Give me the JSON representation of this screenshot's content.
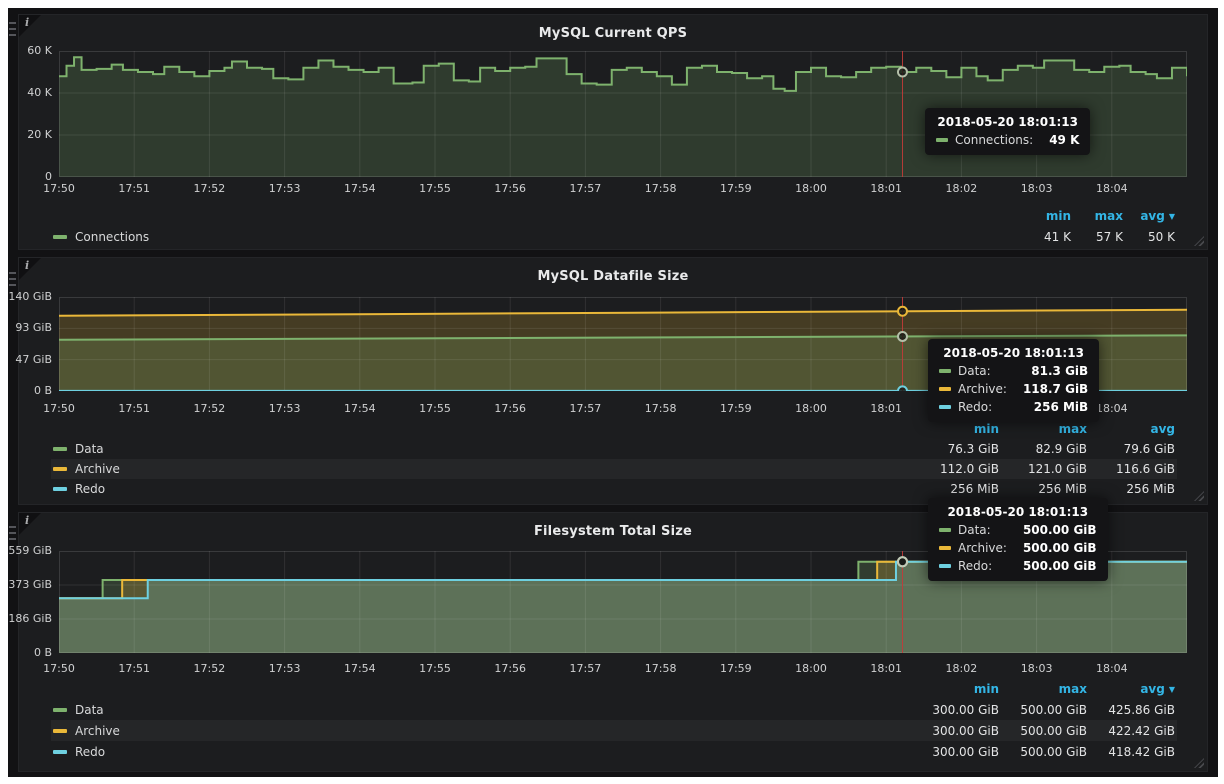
{
  "colors": {
    "green": "#7eb26d",
    "yellow": "#eab839",
    "cyan": "#6ed0e0",
    "legend_header_blue": "#33b5e5",
    "crosshair_red": "#c23b39"
  },
  "x_tick_labels": [
    "17:50",
    "17:51",
    "17:52",
    "17:53",
    "17:54",
    "17:55",
    "17:56",
    "17:57",
    "17:58",
    "17:59",
    "18:00",
    "18:01",
    "18:02",
    "18:03",
    "18:04"
  ],
  "panels": [
    {
      "title": "MySQL Current QPS",
      "y_tick_labels": [
        "60 K",
        "40 K",
        "20 K",
        "0"
      ],
      "tooltip": {
        "time": "2018-05-20 18:01:13",
        "rows": [
          {
            "label": "Connections:",
            "value": "49 K",
            "color": "#7eb26d"
          }
        ]
      },
      "legend": {
        "headers": [
          "min",
          "max",
          "avg"
        ],
        "sorted_by": "avg",
        "rows": [
          {
            "name": "Connections",
            "color": "#7eb26d",
            "stats": [
              "41 K",
              "57 K",
              "50 K"
            ]
          }
        ]
      }
    },
    {
      "title": "MySQL Datafile Size",
      "y_tick_labels": [
        "140 GiB",
        "93 GiB",
        "47 GiB",
        "0 B"
      ],
      "tooltip": {
        "time": "2018-05-20 18:01:13",
        "rows": [
          {
            "label": "Data:",
            "value": "81.3 GiB",
            "color": "#7eb26d"
          },
          {
            "label": "Archive:",
            "value": "118.7 GiB",
            "color": "#eab839"
          },
          {
            "label": "Redo:",
            "value": "256 MiB",
            "color": "#6ed0e0"
          }
        ]
      },
      "legend": {
        "headers": [
          "min",
          "max",
          "avg"
        ],
        "sorted_by": null,
        "rows": [
          {
            "name": "Data",
            "color": "#7eb26d",
            "stats": [
              "76.3 GiB",
              "82.9 GiB",
              "79.6 GiB"
            ]
          },
          {
            "name": "Archive",
            "color": "#eab839",
            "stats": [
              "112.0 GiB",
              "121.0 GiB",
              "116.6 GiB"
            ]
          },
          {
            "name": "Redo",
            "color": "#6ed0e0",
            "stats": [
              "256 MiB",
              "256 MiB",
              "256 MiB"
            ]
          }
        ]
      }
    },
    {
      "title": "Filesystem Total Size",
      "y_tick_labels": [
        "559 GiB",
        "373 GiB",
        "186 GiB",
        "0 B"
      ],
      "tooltip": {
        "time": "2018-05-20 18:01:13",
        "rows": [
          {
            "label": "Data:",
            "value": "500.00 GiB",
            "color": "#7eb26d"
          },
          {
            "label": "Archive:",
            "value": "500.00 GiB",
            "color": "#eab839"
          },
          {
            "label": "Redo:",
            "value": "500.00 GiB",
            "color": "#6ed0e0"
          }
        ]
      },
      "legend": {
        "headers": [
          "min",
          "max",
          "avg"
        ],
        "sorted_by": "avg",
        "rows": [
          {
            "name": "Data",
            "color": "#7eb26d",
            "stats": [
              "300.00 GiB",
              "500.00 GiB",
              "425.86 GiB"
            ]
          },
          {
            "name": "Archive",
            "color": "#eab839",
            "stats": [
              "300.00 GiB",
              "500.00 GiB",
              "422.42 GiB"
            ]
          },
          {
            "name": "Redo",
            "color": "#6ed0e0",
            "stats": [
              "300.00 GiB",
              "500.00 GiB",
              "418.42 GiB"
            ]
          }
        ]
      }
    }
  ],
  "chart_data": [
    {
      "type": "line",
      "title": "MySQL Current QPS",
      "x_start": "17:50",
      "x_end": "18:05",
      "x_minutes": 15,
      "ylim": [
        0,
        60
      ],
      "y_unit": "K queries/s",
      "grid": true,
      "crosshair_minute": 11.2167,
      "crosshair_time": "2018-05-20 18:01:13",
      "series": [
        {
          "name": "Connections",
          "color": "#7eb26d",
          "mode": "steps",
          "fill_opacity": 0.2,
          "ring": "#b4bfa9",
          "points": [
            [
              0,
              48
            ],
            [
              0.1,
              53
            ],
            [
              0.2,
              57
            ],
            [
              0.3,
              51
            ],
            [
              0.5,
              51.5
            ],
            [
              0.7,
              53.5
            ],
            [
              0.85,
              51
            ],
            [
              1.05,
              50
            ],
            [
              1.25,
              49
            ],
            [
              1.4,
              52.5
            ],
            [
              1.6,
              50
            ],
            [
              1.8,
              48
            ],
            [
              2.0,
              50.5
            ],
            [
              2.2,
              52
            ],
            [
              2.3,
              55
            ],
            [
              2.5,
              52
            ],
            [
              2.7,
              51.5
            ],
            [
              2.85,
              47
            ],
            [
              3.05,
              46.5
            ],
            [
              3.25,
              52
            ],
            [
              3.45,
              55.5
            ],
            [
              3.65,
              52.5
            ],
            [
              3.85,
              51
            ],
            [
              4.05,
              50
            ],
            [
              4.25,
              52
            ],
            [
              4.45,
              44.5
            ],
            [
              4.7,
              45
            ],
            [
              4.85,
              53
            ],
            [
              5.05,
              54
            ],
            [
              5.25,
              46
            ],
            [
              5.45,
              45.5
            ],
            [
              5.6,
              52
            ],
            [
              5.8,
              50.5
            ],
            [
              6.0,
              52
            ],
            [
              6.2,
              52.5
            ],
            [
              6.35,
              56.5
            ],
            [
              6.6,
              56.5
            ],
            [
              6.75,
              49
            ],
            [
              6.95,
              44.5
            ],
            [
              7.15,
              44
            ],
            [
              7.35,
              51
            ],
            [
              7.55,
              52
            ],
            [
              7.75,
              50
            ],
            [
              7.95,
              48
            ],
            [
              8.15,
              44
            ],
            [
              8.35,
              52
            ],
            [
              8.55,
              53
            ],
            [
              8.75,
              50
            ],
            [
              8.95,
              49.5
            ],
            [
              9.15,
              47
            ],
            [
              9.35,
              48
            ],
            [
              9.5,
              42
            ],
            [
              9.65,
              41
            ],
            [
              9.8,
              50
            ],
            [
              10.0,
              52
            ],
            [
              10.2,
              48
            ],
            [
              10.4,
              47.5
            ],
            [
              10.6,
              50
            ],
            [
              10.8,
              52
            ],
            [
              11.0,
              52.5
            ],
            [
              11.2,
              50
            ],
            [
              11.4,
              52
            ],
            [
              11.6,
              50.5
            ],
            [
              11.8,
              47.5
            ],
            [
              12.0,
              52
            ],
            [
              12.2,
              48
            ],
            [
              12.35,
              46
            ],
            [
              12.55,
              51
            ],
            [
              12.75,
              53
            ],
            [
              12.95,
              52
            ],
            [
              13.1,
              55.5
            ],
            [
              13.35,
              55.5
            ],
            [
              13.5,
              51
            ],
            [
              13.7,
              50
            ],
            [
              13.9,
              52.5
            ],
            [
              14.1,
              53
            ],
            [
              14.25,
              50
            ],
            [
              14.45,
              49
            ],
            [
              14.6,
              47
            ],
            [
              14.8,
              52
            ],
            [
              15,
              48
            ]
          ]
        }
      ]
    },
    {
      "type": "line",
      "title": "MySQL Datafile Size",
      "x_start": "17:50",
      "x_end": "18:05",
      "x_minutes": 15,
      "ylim": [
        0,
        140
      ],
      "y_unit": "GiB",
      "grid": true,
      "crosshair_minute": 11.2167,
      "crosshair_time": "2018-05-20 18:01:13",
      "series": [
        {
          "name": "Archive",
          "color": "#eab839",
          "mode": "linear",
          "fill_opacity": 0.2,
          "ring": "#eab839",
          "points": [
            [
              0,
              112.0
            ],
            [
              15,
              121.0
            ]
          ]
        },
        {
          "name": "Data",
          "color": "#7eb26d",
          "mode": "linear",
          "fill_opacity": 0.22,
          "ring": "#b4bfa9",
          "points": [
            [
              0,
              76.3
            ],
            [
              15,
              82.9
            ]
          ]
        },
        {
          "name": "Redo",
          "color": "#6ed0e0",
          "mode": "linear",
          "fill_opacity": 0.2,
          "ring": "#6ed0e0",
          "points": [
            [
              0,
              0.25
            ],
            [
              15,
              0.25
            ]
          ]
        }
      ]
    },
    {
      "type": "line",
      "title": "Filesystem Total Size",
      "x_start": "17:50",
      "x_end": "18:05",
      "x_minutes": 15,
      "ylim": [
        0,
        559
      ],
      "y_unit": "GiB",
      "grid": true,
      "crosshair_minute": 11.2167,
      "crosshair_time": "2018-05-20 18:01:13",
      "series": [
        {
          "name": "Data",
          "color": "#7eb26d",
          "mode": "linear",
          "fill_opacity": 0.22,
          "ring": "#c2cbb8",
          "points": [
            [
              0,
              300
            ],
            [
              0.58,
              300
            ],
            [
              0.58,
              400
            ],
            [
              10.63,
              400
            ],
            [
              10.63,
              500
            ],
            [
              15,
              500
            ]
          ]
        },
        {
          "name": "Archive",
          "color": "#eab839",
          "mode": "linear",
          "fill_opacity": 0.22,
          "ring": "#c2cbb8",
          "points": [
            [
              0,
              300
            ],
            [
              0.84,
              300
            ],
            [
              0.84,
              400
            ],
            [
              10.88,
              400
            ],
            [
              10.88,
              500
            ],
            [
              15,
              500
            ]
          ]
        },
        {
          "name": "Redo",
          "color": "#6ed0e0",
          "mode": "linear",
          "fill_opacity": 0.22,
          "ring": "#c2cbb8",
          "points": [
            [
              0,
              300
            ],
            [
              1.18,
              300
            ],
            [
              1.18,
              400
            ],
            [
              11.13,
              400
            ],
            [
              11.13,
              500
            ],
            [
              15,
              500
            ]
          ]
        }
      ]
    }
  ]
}
